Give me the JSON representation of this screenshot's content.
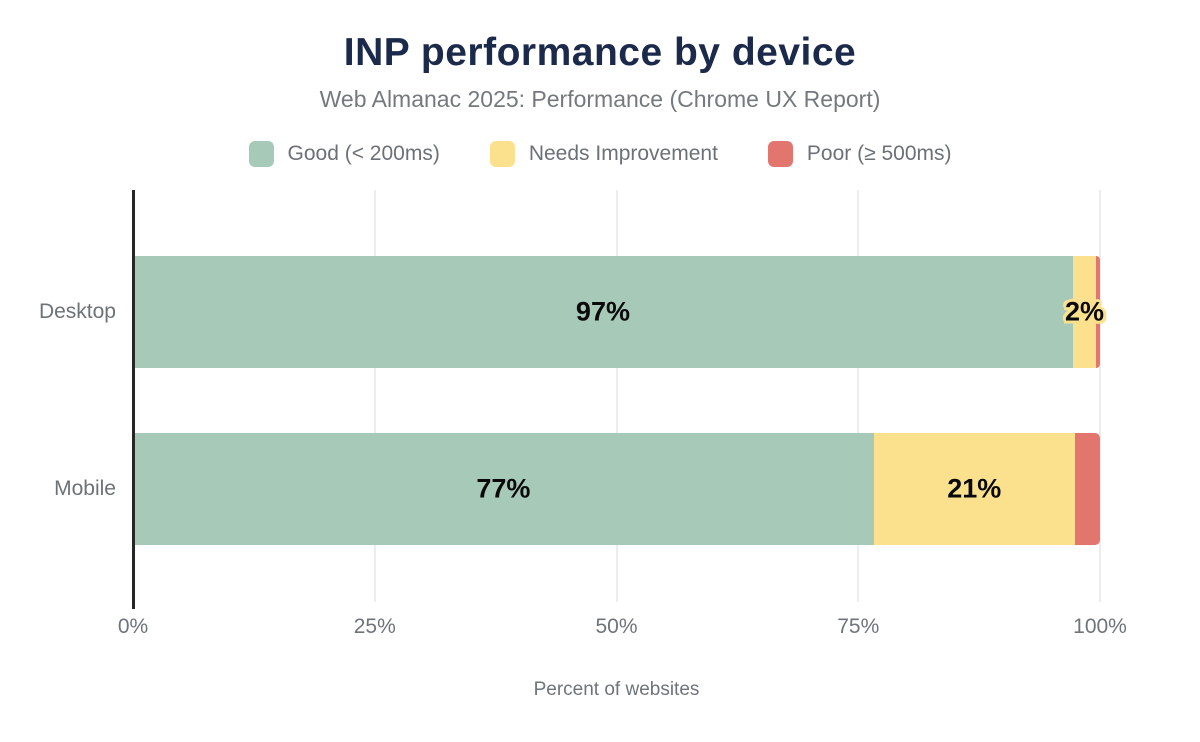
{
  "chart_data": {
    "type": "bar",
    "orientation": "horizontal",
    "stacked": true,
    "title": "INP performance by device",
    "subtitle": "Web Almanac 2025: Performance (Chrome UX Report)",
    "xlabel": "Percent of websites",
    "xlim": [
      0,
      100
    ],
    "x_tick_values": [
      0,
      25,
      50,
      75,
      100
    ],
    "x_tick_labels": [
      "0%",
      "25%",
      "50%",
      "75%",
      "100%"
    ],
    "grid": "vertical",
    "legend_position": "top",
    "categories": [
      "Desktop",
      "Mobile"
    ],
    "legend": [
      {
        "label": "Good (< 200ms)",
        "color": "#a7c9b8"
      },
      {
        "label": "Needs Improvement",
        "color": "#fbe18e"
      },
      {
        "label": "Poor (≥ 500ms)",
        "color": "#e2756e"
      }
    ],
    "series": [
      {
        "name": "Good (< 200ms)",
        "color": "#a7c9b8",
        "values": [
          97.2,
          76.6
        ],
        "labels": [
          "97%",
          "77%"
        ]
      },
      {
        "name": "Needs Improvement",
        "color": "#fbe18e",
        "values": [
          2.4,
          20.8
        ],
        "labels": [
          "2%",
          "21%"
        ]
      },
      {
        "name": "Poor (≥ 500ms)",
        "color": "#e2756e",
        "values": [
          0.4,
          2.6
        ],
        "labels": [
          "",
          ""
        ]
      }
    ],
    "colors": {
      "title": "#1b2a4a",
      "subtitle": "#75797e",
      "axis_text": "#6f747b",
      "axis_line": "#262626",
      "gridline": "#ededed",
      "value_label": "#0a0a0a",
      "background": "#ffffff"
    }
  }
}
